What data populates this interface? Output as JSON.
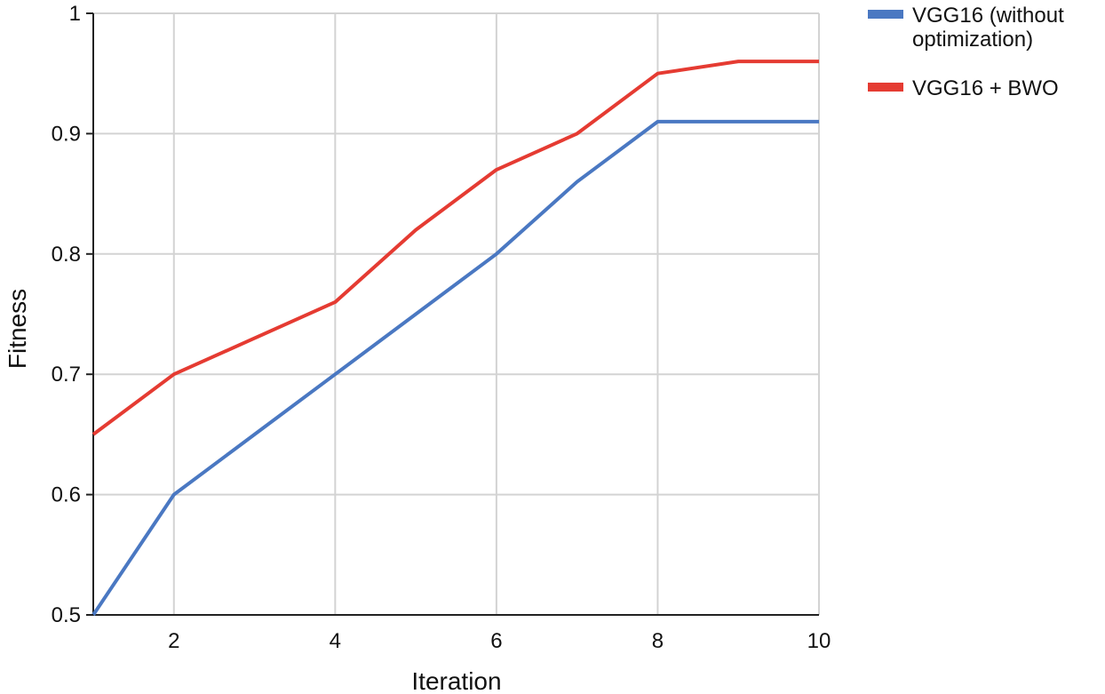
{
  "chart_data": {
    "type": "line",
    "title": "",
    "xlabel": "Iteration",
    "ylabel": "Fitness",
    "xlim": [
      1,
      10
    ],
    "ylim": [
      0.5,
      1
    ],
    "xticks": [
      2,
      4,
      6,
      8,
      10
    ],
    "yticks": [
      0.5,
      0.6,
      0.7,
      0.8,
      0.9,
      1
    ],
    "ytick_labels": [
      "0.5",
      "0.6",
      "0.7",
      "0.8",
      "0.9",
      "1"
    ],
    "grid": true,
    "legend_position": "top-right, outside plot",
    "x": [
      1,
      2,
      3,
      4,
      5,
      6,
      7,
      8,
      9,
      10
    ],
    "series": [
      {
        "name": "VGG16  (without optimization)",
        "legend_lines": [
          "VGG16  (without",
          "optimization)"
        ],
        "color": "#4A78C2",
        "values": [
          0.5,
          0.6,
          0.65,
          0.7,
          0.75,
          0.8,
          0.86,
          0.91,
          0.91,
          0.91
        ]
      },
      {
        "name": "VGG16 + BWO",
        "legend_lines": [
          "VGG16 + BWO"
        ],
        "color": "#E53B32",
        "values": [
          0.65,
          0.7,
          0.73,
          0.76,
          0.82,
          0.87,
          0.9,
          0.95,
          0.96,
          0.96
        ]
      }
    ]
  }
}
